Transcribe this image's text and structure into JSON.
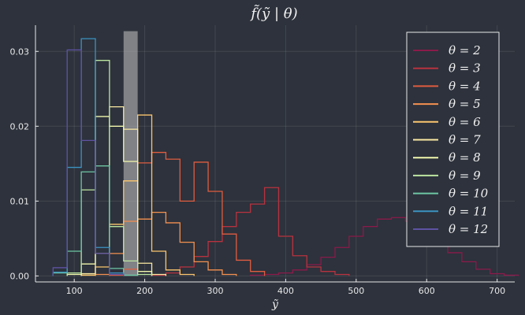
{
  "chart_data": {
    "type": "histogram",
    "title": "f̃(ỹ | θ)",
    "xlabel": "ỹ",
    "ylabel": "",
    "xlim": [
      45,
      725
    ],
    "ylim": [
      -0.0008,
      0.0335
    ],
    "xticks": [
      100,
      200,
      300,
      400,
      500,
      600,
      700
    ],
    "yticks": [
      0.0,
      0.01,
      0.02,
      0.03
    ],
    "ytick_labels": [
      "0.00",
      "0.01",
      "0.02",
      "0.03"
    ],
    "grid": true,
    "legend_position": "top-right",
    "highlight": {
      "x": [
        170,
        190
      ],
      "y_top": 0.0327,
      "color": "#b8b8b8"
    },
    "series": [
      {
        "name": "θ = 2",
        "color": "#8b1a4a",
        "bins": [
          [
            350,
            370,
            0.0001
          ],
          [
            370,
            390,
            0.0002
          ],
          [
            390,
            410,
            0.0004
          ],
          [
            410,
            430,
            0.0008
          ],
          [
            430,
            450,
            0.0015
          ],
          [
            450,
            470,
            0.0025
          ],
          [
            470,
            490,
            0.0038
          ],
          [
            490,
            510,
            0.0053
          ],
          [
            510,
            530,
            0.0066
          ],
          [
            530,
            550,
            0.0076
          ],
          [
            550,
            570,
            0.0078
          ],
          [
            570,
            590,
            0.0073
          ],
          [
            590,
            610,
            0.0062
          ],
          [
            610,
            630,
            0.0046
          ],
          [
            630,
            650,
            0.0031
          ],
          [
            650,
            670,
            0.0019
          ],
          [
            670,
            690,
            0.0009
          ],
          [
            690,
            710,
            0.0003
          ],
          [
            710,
            730,
            0.0001
          ]
        ]
      },
      {
        "name": "θ = 3",
        "color": "#b8323f",
        "bins": [
          [
            210,
            230,
            0.0001
          ],
          [
            230,
            250,
            0.0004
          ],
          [
            250,
            270,
            0.0012
          ],
          [
            270,
            290,
            0.0026
          ],
          [
            290,
            310,
            0.0046
          ],
          [
            310,
            330,
            0.0066
          ],
          [
            330,
            350,
            0.0085
          ],
          [
            350,
            370,
            0.0096
          ],
          [
            370,
            390,
            0.0118
          ],
          [
            390,
            410,
            0.0053
          ],
          [
            410,
            430,
            0.0027
          ],
          [
            430,
            450,
            0.0012
          ],
          [
            450,
            470,
            0.0006
          ],
          [
            470,
            490,
            0.0002
          ]
        ]
      },
      {
        "name": "θ = 4",
        "color": "#e05c40",
        "bins": [
          [
            150,
            170,
            0.0001
          ],
          [
            170,
            190,
            0.0009
          ],
          [
            190,
            210,
            0.0151
          ],
          [
            210,
            230,
            0.0165
          ],
          [
            230,
            250,
            0.0156
          ],
          [
            250,
            270,
            0.01
          ],
          [
            270,
            290,
            0.0152
          ],
          [
            290,
            310,
            0.0113
          ],
          [
            310,
            330,
            0.0056
          ],
          [
            330,
            350,
            0.0021
          ],
          [
            350,
            370,
            0.0006
          ]
        ]
      },
      {
        "name": "θ = 5",
        "color": "#f59050",
        "bins": [
          [
            130,
            150,
            0.0002
          ],
          [
            150,
            170,
            0.003
          ],
          [
            170,
            190,
            0.0073
          ],
          [
            190,
            210,
            0.0076
          ],
          [
            210,
            230,
            0.0085
          ],
          [
            230,
            250,
            0.0071
          ],
          [
            250,
            270,
            0.0045
          ],
          [
            270,
            290,
            0.0019
          ],
          [
            290,
            310,
            0.0008
          ],
          [
            310,
            330,
            0.0002
          ]
        ]
      },
      {
        "name": "θ = 6",
        "color": "#fcc66e",
        "bins": [
          [
            110,
            130,
            0.0001
          ],
          [
            130,
            150,
            0.0012
          ],
          [
            150,
            170,
            0.0069
          ],
          [
            170,
            190,
            0.0127
          ],
          [
            190,
            210,
            0.0215
          ],
          [
            210,
            230,
            0.0033
          ],
          [
            230,
            250,
            0.0008
          ],
          [
            250,
            270,
            0.0002
          ]
        ]
      },
      {
        "name": "θ = 7",
        "color": "#fce9a2",
        "bins": [
          [
            110,
            130,
            0.0003
          ],
          [
            130,
            150,
            0.003
          ],
          [
            150,
            170,
            0.0226
          ],
          [
            170,
            190,
            0.0196
          ],
          [
            190,
            210,
            0.0017
          ],
          [
            210,
            230,
            0.0002
          ]
        ]
      },
      {
        "name": "θ = 8",
        "color": "#f2f8ad",
        "bins": [
          [
            90,
            110,
            0.0002
          ],
          [
            110,
            130,
            0.0016
          ],
          [
            130,
            150,
            0.0213
          ],
          [
            150,
            170,
            0.02
          ],
          [
            170,
            190,
            0.0153
          ],
          [
            190,
            210,
            0.0006
          ]
        ]
      },
      {
        "name": "θ = 9",
        "color": "#bde6a0",
        "bins": [
          [
            90,
            110,
            0.0004
          ],
          [
            110,
            130,
            0.0115
          ],
          [
            130,
            150,
            0.0288
          ],
          [
            150,
            170,
            0.0066
          ],
          [
            170,
            190,
            0.002
          ],
          [
            190,
            210,
            0.0002
          ]
        ]
      },
      {
        "name": "θ = 10",
        "color": "#6ec7a4",
        "bins": [
          [
            70,
            90,
            0.0004
          ],
          [
            90,
            110,
            0.0033
          ],
          [
            110,
            130,
            0.0139
          ],
          [
            130,
            150,
            0.0147
          ],
          [
            150,
            170,
            0.001
          ],
          [
            170,
            190,
            0.0001
          ]
        ]
      },
      {
        "name": "θ = 11",
        "color": "#3c93c2",
        "bins": [
          [
            70,
            90,
            0.0005
          ],
          [
            90,
            110,
            0.0145
          ],
          [
            110,
            130,
            0.0317
          ],
          [
            130,
            150,
            0.0038
          ],
          [
            150,
            170,
            0.0004
          ]
        ]
      },
      {
        "name": "θ = 12",
        "color": "#5e52a4",
        "bins": [
          [
            70,
            90,
            0.0011
          ],
          [
            90,
            110,
            0.0302
          ],
          [
            110,
            130,
            0.0181
          ],
          [
            130,
            150,
            0.003
          ],
          [
            150,
            170,
            0.0002
          ]
        ]
      }
    ]
  }
}
